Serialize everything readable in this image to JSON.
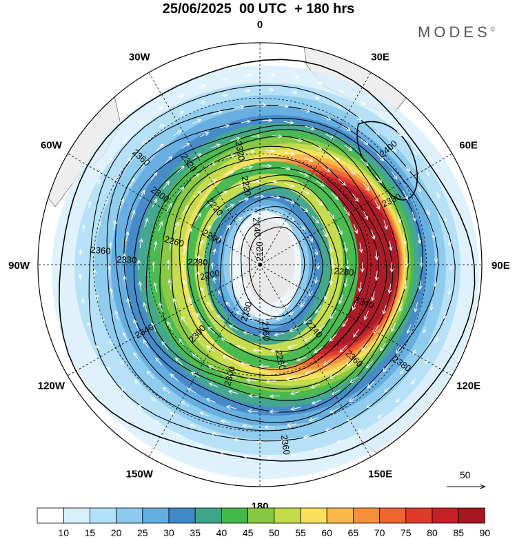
{
  "header": {
    "title": "25/06/2025  00 UTC  + 180 hrs",
    "brand": "MODES",
    "brand_mark": "©"
  },
  "map": {
    "projection": "south-polar-stereographic",
    "longitude_labels": [
      {
        "text": "0",
        "lon": 0
      },
      {
        "text": "30E",
        "lon": 30
      },
      {
        "text": "60E",
        "lon": 60
      },
      {
        "text": "90E",
        "lon": 90
      },
      {
        "text": "120E",
        "lon": 120
      },
      {
        "text": "150E",
        "lon": 150
      },
      {
        "text": "180",
        "lon": 180
      },
      {
        "text": "150W",
        "lon": 210
      },
      {
        "text": "120W",
        "lon": 240
      },
      {
        "text": "90W",
        "lon": 270
      },
      {
        "text": "60W",
        "lon": 300
      },
      {
        "text": "30W",
        "lon": 330
      }
    ],
    "contour_labels": [
      {
        "text": "2320",
        "lon": 325,
        "ring": 0.56
      },
      {
        "text": "2320",
        "lon": 350,
        "ring": 0.52
      },
      {
        "text": "2360",
        "lon": 312,
        "ring": 0.72
      },
      {
        "text": "2400",
        "lon": 48,
        "ring": 0.78
      },
      {
        "text": "2380",
        "lon": 64,
        "ring": 0.66
      },
      {
        "text": "2220",
        "lon": 350,
        "ring": 0.36
      },
      {
        "text": "2300",
        "lon": 305,
        "ring": 0.55
      },
      {
        "text": "2220",
        "lon": 322,
        "ring": 0.33
      },
      {
        "text": "2140",
        "lon": 355,
        "ring": 0.17
      },
      {
        "text": "2260",
        "lon": 285,
        "ring": 0.4
      },
      {
        "text": "2200",
        "lon": 300,
        "ring": 0.25
      },
      {
        "text": "2280",
        "lon": 272,
        "ring": 0.28
      },
      {
        "text": "2120",
        "lon": 360,
        "ring": 0.06
      },
      {
        "text": "2360",
        "lon": 275,
        "ring": 0.72
      },
      {
        "text": "2330",
        "lon": 272,
        "ring": 0.6
      },
      {
        "text": "2200",
        "lon": 258,
        "ring": 0.23
      },
      {
        "text": "2340",
        "lon": 240,
        "ring": 0.6
      },
      {
        "text": "2300",
        "lon": 222,
        "ring": 0.42
      },
      {
        "text": "2180",
        "lon": 196,
        "ring": 0.22
      },
      {
        "text": "2160",
        "lon": 175,
        "ring": 0.3
      },
      {
        "text": "2260",
        "lon": 168,
        "ring": 0.44
      },
      {
        "text": "2300",
        "lon": 195,
        "ring": 0.52
      },
      {
        "text": "2240",
        "lon": 140,
        "ring": 0.38
      },
      {
        "text": "2280",
        "lon": 95,
        "ring": 0.38
      },
      {
        "text": "2340",
        "lon": 110,
        "ring": 0.5
      },
      {
        "text": "2360",
        "lon": 135,
        "ring": 0.6
      },
      {
        "text": "2380",
        "lon": 125,
        "ring": 0.78
      },
      {
        "text": "2360",
        "lon": 172,
        "ring": 0.82
      }
    ]
  },
  "vector_legend": {
    "value": "50"
  },
  "colorbar": {
    "colors": [
      "#ffffff",
      "#d8f0fb",
      "#b4e1f7",
      "#8ccbee",
      "#63ade0",
      "#4189c8",
      "#3fa58a",
      "#45b84c",
      "#86c83f",
      "#c4db4a",
      "#f8e05a",
      "#f9b84b",
      "#f69038",
      "#ef6430",
      "#e03a2a",
      "#c61f27",
      "#a81622"
    ],
    "labels": [
      "10",
      "15",
      "20",
      "25",
      "30",
      "35",
      "40",
      "45",
      "50",
      "55",
      "60",
      "65",
      "70",
      "75",
      "80",
      "85",
      "90"
    ]
  }
}
